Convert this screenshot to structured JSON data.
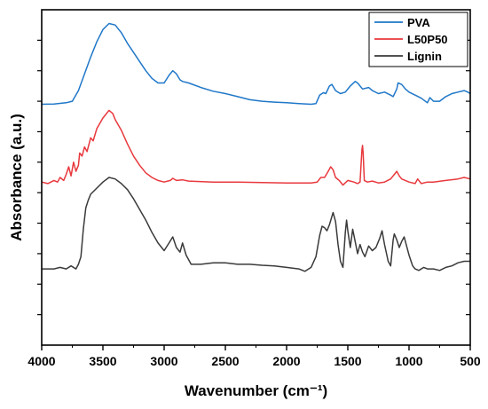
{
  "chart_data": {
    "type": "line",
    "xlabel": "Wavenumber (cm⁻¹)",
    "ylabel": "Absorbance (a.u.)",
    "xlim": [
      4000,
      500
    ],
    "x_reversed": true,
    "xticks": [
      4000,
      3500,
      3000,
      2500,
      2000,
      1500,
      1000,
      500
    ],
    "xtick_labels": [
      "4000",
      "3500",
      "3000",
      "2500",
      "2000",
      "1500",
      "1000",
      "500"
    ],
    "ylim": [
      0,
      11
    ],
    "yticks": [
      1,
      2,
      3,
      4,
      5,
      6,
      7,
      8,
      9,
      10
    ],
    "ytick_labels_shown": false,
    "legend_position": "top-right",
    "series": [
      {
        "name": "PVA",
        "color": "#1f77c8",
        "points": [
          [
            4000,
            7.9
          ],
          [
            3900,
            7.91
          ],
          [
            3800,
            7.95
          ],
          [
            3750,
            8.0
          ],
          [
            3700,
            8.35
          ],
          [
            3650,
            8.9
          ],
          [
            3600,
            9.45
          ],
          [
            3550,
            9.95
          ],
          [
            3500,
            10.35
          ],
          [
            3450,
            10.55
          ],
          [
            3400,
            10.5
          ],
          [
            3350,
            10.25
          ],
          [
            3300,
            9.9
          ],
          [
            3250,
            9.6
          ],
          [
            3200,
            9.3
          ],
          [
            3150,
            9.0
          ],
          [
            3100,
            8.75
          ],
          [
            3050,
            8.6
          ],
          [
            3000,
            8.6
          ],
          [
            2960,
            8.85
          ],
          [
            2930,
            9.0
          ],
          [
            2900,
            8.9
          ],
          [
            2870,
            8.7
          ],
          [
            2850,
            8.65
          ],
          [
            2800,
            8.6
          ],
          [
            2700,
            8.45
          ],
          [
            2600,
            8.33
          ],
          [
            2500,
            8.25
          ],
          [
            2400,
            8.15
          ],
          [
            2300,
            8.05
          ],
          [
            2200,
            8.0
          ],
          [
            2100,
            7.97
          ],
          [
            2000,
            7.95
          ],
          [
            1900,
            7.92
          ],
          [
            1800,
            7.9
          ],
          [
            1760,
            7.92
          ],
          [
            1730,
            8.2
          ],
          [
            1700,
            8.28
          ],
          [
            1680,
            8.25
          ],
          [
            1650,
            8.5
          ],
          [
            1630,
            8.55
          ],
          [
            1600,
            8.35
          ],
          [
            1560,
            8.25
          ],
          [
            1520,
            8.3
          ],
          [
            1480,
            8.5
          ],
          [
            1440,
            8.65
          ],
          [
            1420,
            8.6
          ],
          [
            1380,
            8.4
          ],
          [
            1330,
            8.45
          ],
          [
            1300,
            8.35
          ],
          [
            1250,
            8.25
          ],
          [
            1200,
            8.3
          ],
          [
            1150,
            8.2
          ],
          [
            1130,
            8.15
          ],
          [
            1100,
            8.4
          ],
          [
            1090,
            8.6
          ],
          [
            1060,
            8.55
          ],
          [
            1030,
            8.4
          ],
          [
            1000,
            8.3
          ],
          [
            950,
            8.2
          ],
          [
            900,
            8.1
          ],
          [
            850,
            7.95
          ],
          [
            830,
            8.12
          ],
          [
            800,
            8.0
          ],
          [
            750,
            8.0
          ],
          [
            700,
            8.15
          ],
          [
            650,
            8.25
          ],
          [
            600,
            8.3
          ],
          [
            550,
            8.35
          ],
          [
            520,
            8.3
          ],
          [
            500,
            8.25
          ]
        ]
      },
      {
        "name": "L50P50",
        "color": "#e8383d",
        "points": [
          [
            4000,
            5.35
          ],
          [
            3950,
            5.3
          ],
          [
            3900,
            5.4
          ],
          [
            3870,
            5.35
          ],
          [
            3850,
            5.5
          ],
          [
            3820,
            5.4
          ],
          [
            3800,
            5.6
          ],
          [
            3780,
            5.85
          ],
          [
            3760,
            5.55
          ],
          [
            3740,
            6.0
          ],
          [
            3720,
            5.7
          ],
          [
            3700,
            5.9
          ],
          [
            3690,
            6.3
          ],
          [
            3670,
            6.2
          ],
          [
            3650,
            6.5
          ],
          [
            3630,
            6.35
          ],
          [
            3600,
            6.8
          ],
          [
            3580,
            6.7
          ],
          [
            3550,
            7.1
          ],
          [
            3500,
            7.45
          ],
          [
            3450,
            7.7
          ],
          [
            3420,
            7.6
          ],
          [
            3400,
            7.4
          ],
          [
            3350,
            7.05
          ],
          [
            3300,
            6.6
          ],
          [
            3250,
            6.2
          ],
          [
            3200,
            5.9
          ],
          [
            3150,
            5.65
          ],
          [
            3100,
            5.5
          ],
          [
            3050,
            5.4
          ],
          [
            3000,
            5.35
          ],
          [
            2950,
            5.4
          ],
          [
            2930,
            5.47
          ],
          [
            2900,
            5.4
          ],
          [
            2850,
            5.42
          ],
          [
            2800,
            5.38
          ],
          [
            2600,
            5.35
          ],
          [
            2400,
            5.35
          ],
          [
            2200,
            5.33
          ],
          [
            2000,
            5.32
          ],
          [
            1800,
            5.32
          ],
          [
            1750,
            5.35
          ],
          [
            1720,
            5.5
          ],
          [
            1690,
            5.5
          ],
          [
            1660,
            5.7
          ],
          [
            1640,
            5.85
          ],
          [
            1620,
            5.75
          ],
          [
            1600,
            5.5
          ],
          [
            1570,
            5.4
          ],
          [
            1540,
            5.25
          ],
          [
            1500,
            5.4
          ],
          [
            1450,
            5.35
          ],
          [
            1420,
            5.3
          ],
          [
            1400,
            5.35
          ],
          [
            1385,
            6.4
          ],
          [
            1380,
            6.55
          ],
          [
            1375,
            6.3
          ],
          [
            1365,
            5.4
          ],
          [
            1340,
            5.35
          ],
          [
            1300,
            5.38
          ],
          [
            1250,
            5.32
          ],
          [
            1200,
            5.35
          ],
          [
            1150,
            5.45
          ],
          [
            1120,
            5.6
          ],
          [
            1100,
            5.7
          ],
          [
            1080,
            5.55
          ],
          [
            1060,
            5.45
          ],
          [
            1000,
            5.35
          ],
          [
            950,
            5.3
          ],
          [
            930,
            5.45
          ],
          [
            900,
            5.3
          ],
          [
            850,
            5.35
          ],
          [
            800,
            5.35
          ],
          [
            700,
            5.4
          ],
          [
            600,
            5.45
          ],
          [
            550,
            5.5
          ],
          [
            500,
            5.45
          ]
        ]
      },
      {
        "name": "Lignin",
        "color": "#3a3a3a",
        "points": [
          [
            4000,
            2.5
          ],
          [
            3900,
            2.5
          ],
          [
            3850,
            2.55
          ],
          [
            3800,
            2.5
          ],
          [
            3760,
            2.6
          ],
          [
            3720,
            2.5
          ],
          [
            3700,
            2.65
          ],
          [
            3680,
            2.9
          ],
          [
            3660,
            3.8
          ],
          [
            3640,
            4.5
          ],
          [
            3620,
            4.75
          ],
          [
            3600,
            4.95
          ],
          [
            3550,
            5.15
          ],
          [
            3500,
            5.35
          ],
          [
            3450,
            5.5
          ],
          [
            3400,
            5.45
          ],
          [
            3350,
            5.3
          ],
          [
            3300,
            5.1
          ],
          [
            3250,
            4.8
          ],
          [
            3200,
            4.45
          ],
          [
            3150,
            4.1
          ],
          [
            3100,
            3.7
          ],
          [
            3050,
            3.35
          ],
          [
            3000,
            3.1
          ],
          [
            2960,
            3.35
          ],
          [
            2930,
            3.55
          ],
          [
            2900,
            3.2
          ],
          [
            2870,
            3.05
          ],
          [
            2850,
            3.35
          ],
          [
            2820,
            2.95
          ],
          [
            2780,
            2.65
          ],
          [
            2700,
            2.65
          ],
          [
            2600,
            2.7
          ],
          [
            2500,
            2.7
          ],
          [
            2400,
            2.65
          ],
          [
            2300,
            2.65
          ],
          [
            2200,
            2.62
          ],
          [
            2100,
            2.6
          ],
          [
            2000,
            2.55
          ],
          [
            1900,
            2.5
          ],
          [
            1850,
            2.42
          ],
          [
            1800,
            2.55
          ],
          [
            1760,
            2.9
          ],
          [
            1730,
            3.6
          ],
          [
            1710,
            3.9
          ],
          [
            1690,
            3.85
          ],
          [
            1670,
            3.75
          ],
          [
            1650,
            3.95
          ],
          [
            1620,
            4.35
          ],
          [
            1600,
            4.05
          ],
          [
            1580,
            3.3
          ],
          [
            1560,
            2.75
          ],
          [
            1540,
            2.55
          ],
          [
            1520,
            3.7
          ],
          [
            1510,
            4.1
          ],
          [
            1500,
            3.75
          ],
          [
            1480,
            3.2
          ],
          [
            1460,
            3.8
          ],
          [
            1440,
            3.4
          ],
          [
            1420,
            3.0
          ],
          [
            1400,
            3.3
          ],
          [
            1380,
            3.05
          ],
          [
            1360,
            2.9
          ],
          [
            1330,
            3.25
          ],
          [
            1300,
            3.1
          ],
          [
            1270,
            3.2
          ],
          [
            1240,
            3.5
          ],
          [
            1220,
            3.75
          ],
          [
            1200,
            3.3
          ],
          [
            1170,
            2.75
          ],
          [
            1150,
            2.6
          ],
          [
            1130,
            3.45
          ],
          [
            1120,
            3.65
          ],
          [
            1100,
            3.45
          ],
          [
            1080,
            3.2
          ],
          [
            1060,
            3.4
          ],
          [
            1040,
            3.55
          ],
          [
            1030,
            3.4
          ],
          [
            1000,
            2.95
          ],
          [
            970,
            2.6
          ],
          [
            950,
            2.5
          ],
          [
            920,
            2.45
          ],
          [
            880,
            2.55
          ],
          [
            850,
            2.5
          ],
          [
            800,
            2.5
          ],
          [
            750,
            2.45
          ],
          [
            700,
            2.55
          ],
          [
            650,
            2.6
          ],
          [
            600,
            2.7
          ],
          [
            550,
            2.75
          ],
          [
            500,
            2.75
          ]
        ]
      }
    ]
  }
}
